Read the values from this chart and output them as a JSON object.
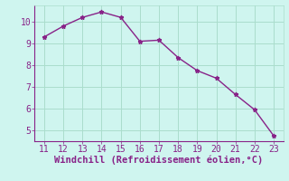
{
  "x": [
    11,
    12,
    13,
    14,
    15,
    16,
    17,
    18,
    19,
    20,
    21,
    22,
    23
  ],
  "y": [
    9.3,
    9.8,
    10.2,
    10.45,
    10.2,
    9.1,
    9.15,
    8.35,
    7.75,
    7.4,
    6.65,
    5.95,
    4.75
  ],
  "line_color": "#882288",
  "marker": "*",
  "marker_size": 3.5,
  "line_width": 1.0,
  "background_color": "#cff5ef",
  "grid_color": "#aaddcc",
  "xlabel": "Windchill (Refroidissement éolien,°C)",
  "xlabel_color": "#882288",
  "xlabel_fontsize": 7.5,
  "ytick_values": [
    5,
    6,
    7,
    8,
    9,
    10
  ],
  "xtick_values": [
    11,
    12,
    13,
    14,
    15,
    16,
    17,
    18,
    19,
    20,
    21,
    22,
    23
  ],
  "ylim": [
    4.5,
    10.75
  ],
  "xlim": [
    10.5,
    23.5
  ],
  "tick_color": "#882288",
  "tick_fontsize": 7,
  "spine_color": "#882288"
}
